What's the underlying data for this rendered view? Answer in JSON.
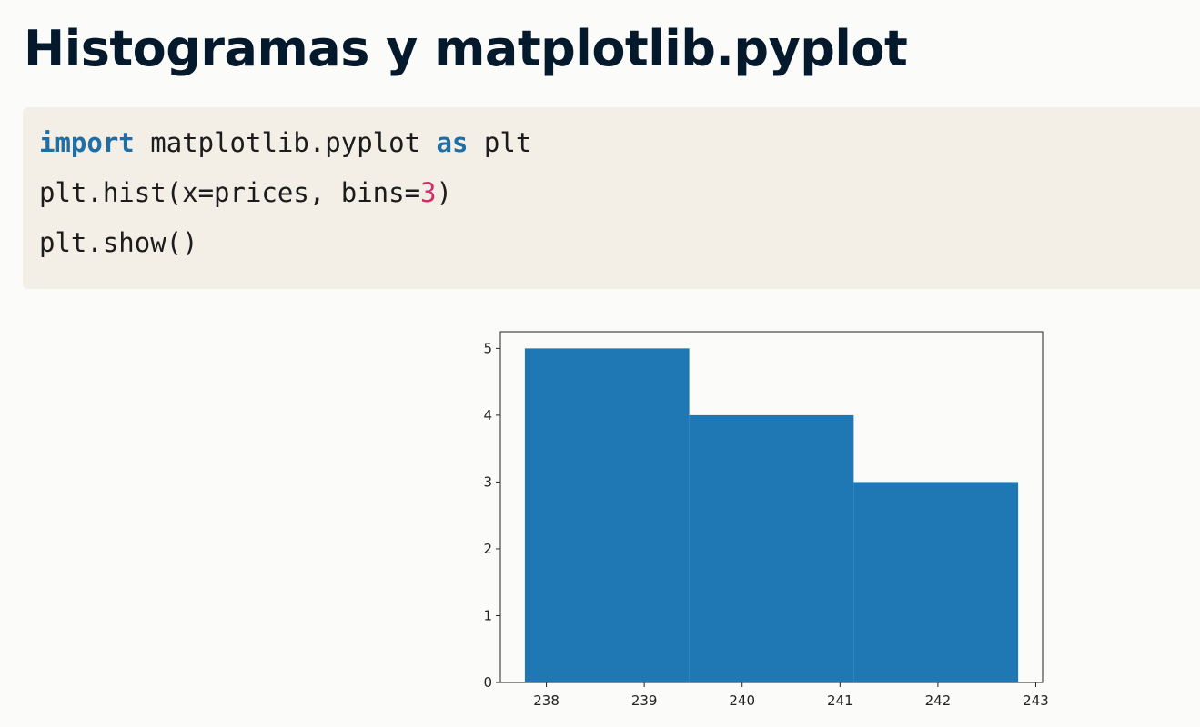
{
  "title": "Histogramas y matplotlib.pyplot",
  "code": {
    "lines": [
      [
        "import",
        "matplotlib.pyplot",
        "as",
        "plt"
      ],
      [
        "plt.hist(x=prices, bins=",
        "3",
        ")"
      ],
      [
        "plt.show()"
      ]
    ]
  },
  "chart_data": {
    "type": "histogram",
    "bins": [
      237.78,
      239.46,
      241.14,
      242.82
    ],
    "values": [
      5,
      4,
      3
    ],
    "color": "#1f77b4",
    "xlim": [
      237.53,
      243.07
    ],
    "xticks": [
      238,
      239,
      240,
      241,
      242,
      243
    ],
    "ylim": [
      0,
      5.25
    ],
    "yticks": [
      0,
      1,
      2,
      3,
      4,
      5
    ]
  }
}
